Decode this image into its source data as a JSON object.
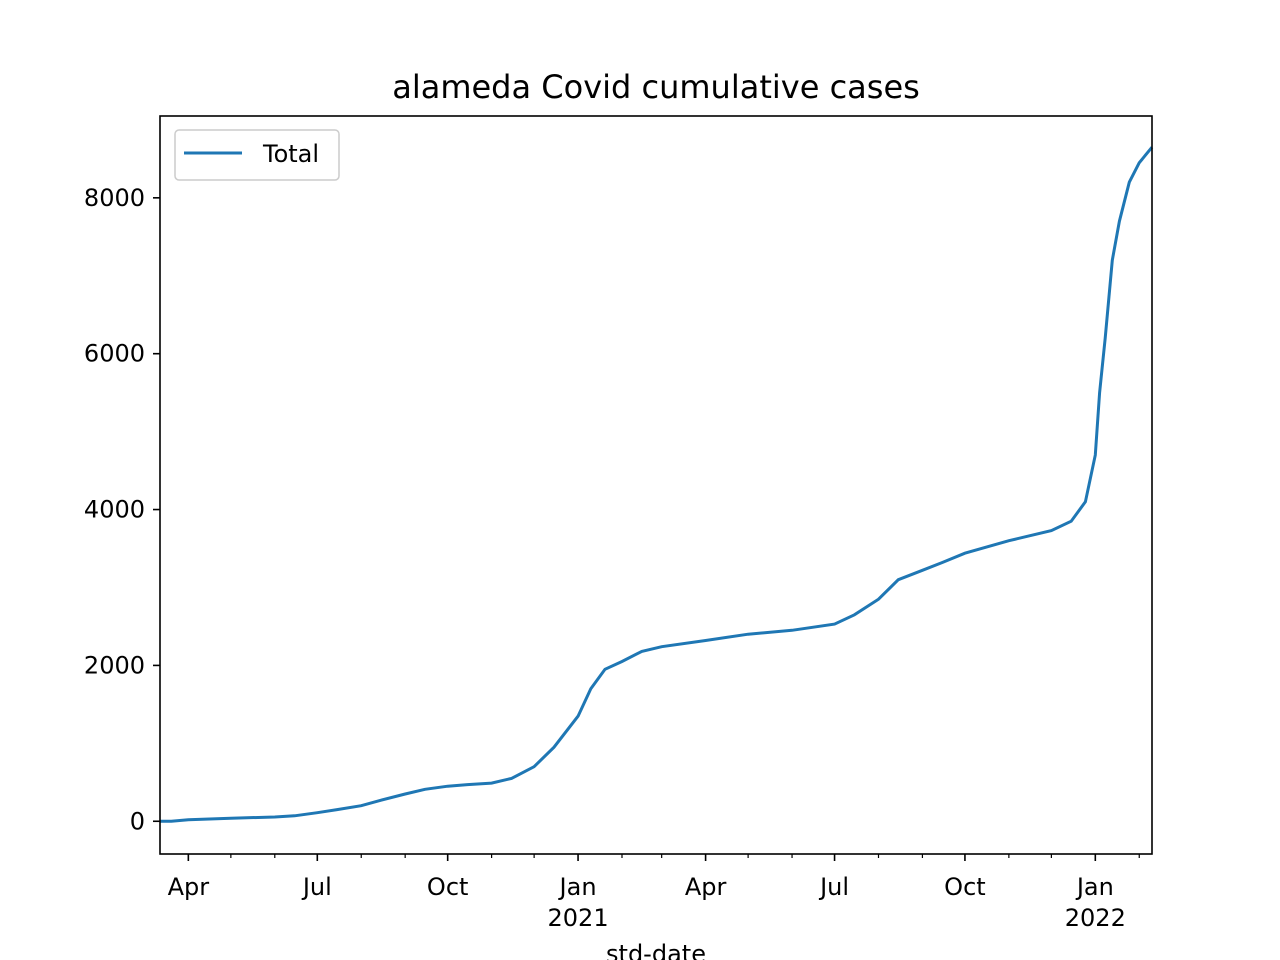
{
  "chart_data": {
    "type": "line",
    "title": "alameda Covid cumulative cases",
    "xlabel": "std-date",
    "ylabel": "",
    "legend": {
      "placement": "top-left",
      "entries": [
        "Total"
      ]
    },
    "grid": false,
    "x_range": [
      "2020-03-12",
      "2022-02-10"
    ],
    "ylim": [
      -420,
      9050
    ],
    "x_ticks": [
      {
        "date": "2020-04-01",
        "label": "Apr",
        "sub": ""
      },
      {
        "date": "2020-07-01",
        "label": "Jul",
        "sub": ""
      },
      {
        "date": "2020-10-01",
        "label": "Oct",
        "sub": ""
      },
      {
        "date": "2021-01-01",
        "label": "Jan",
        "sub": "2021"
      },
      {
        "date": "2021-04-01",
        "label": "Apr",
        "sub": ""
      },
      {
        "date": "2021-07-01",
        "label": "Jul",
        "sub": ""
      },
      {
        "date": "2021-10-01",
        "label": "Oct",
        "sub": ""
      },
      {
        "date": "2022-01-01",
        "label": "Jan",
        "sub": "2022"
      }
    ],
    "y_ticks": [
      {
        "value": 0,
        "label": "0"
      },
      {
        "value": 2000,
        "label": "2000"
      },
      {
        "value": 4000,
        "label": "4000"
      },
      {
        "value": 6000,
        "label": "6000"
      },
      {
        "value": 8000,
        "label": "8000"
      }
    ],
    "series": [
      {
        "name": "Total",
        "color": "#1f77b4",
        "points": [
          [
            "2020-03-12",
            0
          ],
          [
            "2020-03-20",
            0
          ],
          [
            "2020-04-01",
            20
          ],
          [
            "2020-05-01",
            40
          ],
          [
            "2020-06-01",
            55
          ],
          [
            "2020-06-15",
            70
          ],
          [
            "2020-07-01",
            110
          ],
          [
            "2020-07-15",
            150
          ],
          [
            "2020-08-01",
            200
          ],
          [
            "2020-08-15",
            270
          ],
          [
            "2020-09-01",
            350
          ],
          [
            "2020-09-15",
            410
          ],
          [
            "2020-10-01",
            450
          ],
          [
            "2020-10-15",
            470
          ],
          [
            "2020-11-01",
            490
          ],
          [
            "2020-11-15",
            550
          ],
          [
            "2020-12-01",
            700
          ],
          [
            "2020-12-15",
            950
          ],
          [
            "2021-01-01",
            1350
          ],
          [
            "2021-01-10",
            1700
          ],
          [
            "2021-01-20",
            1950
          ],
          [
            "2021-02-01",
            2050
          ],
          [
            "2021-02-15",
            2180
          ],
          [
            "2021-03-01",
            2240
          ],
          [
            "2021-04-01",
            2320
          ],
          [
            "2021-05-01",
            2400
          ],
          [
            "2021-06-01",
            2450
          ],
          [
            "2021-07-01",
            2530
          ],
          [
            "2021-07-15",
            2650
          ],
          [
            "2021-08-01",
            2850
          ],
          [
            "2021-08-15",
            3100
          ],
          [
            "2021-09-01",
            3220
          ],
          [
            "2021-09-15",
            3320
          ],
          [
            "2021-10-01",
            3440
          ],
          [
            "2021-11-01",
            3600
          ],
          [
            "2021-12-01",
            3730
          ],
          [
            "2021-12-15",
            3850
          ],
          [
            "2021-12-25",
            4100
          ],
          [
            "2022-01-01",
            4700
          ],
          [
            "2022-01-04",
            5500
          ],
          [
            "2022-01-08",
            6200
          ],
          [
            "2022-01-13",
            7200
          ],
          [
            "2022-01-18",
            7700
          ],
          [
            "2022-01-25",
            8200
          ],
          [
            "2022-02-01",
            8450
          ],
          [
            "2022-02-10",
            8650
          ]
        ]
      }
    ]
  }
}
